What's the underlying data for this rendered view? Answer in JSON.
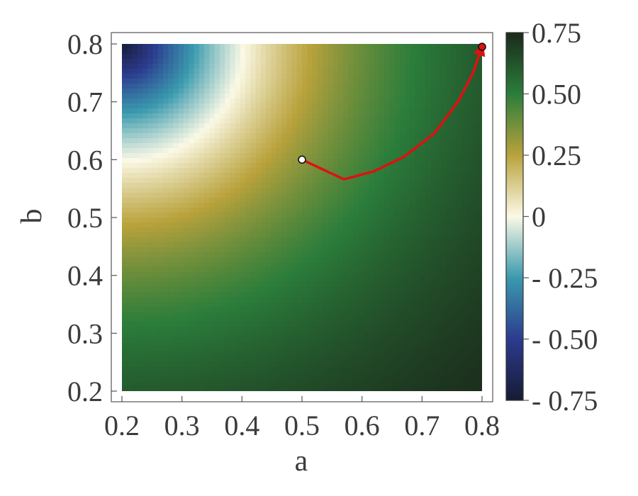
{
  "chart_data": {
    "type": "heatmap",
    "xlabel": "a",
    "ylabel": "b",
    "xlim": [
      0.2,
      0.8
    ],
    "ylim": [
      0.2,
      0.8
    ],
    "x_ticks": [
      "0.2",
      "0.3",
      "0.4",
      "0.5",
      "0.6",
      "0.7",
      "0.8"
    ],
    "y_ticks": [
      "0.2",
      "0.3",
      "0.4",
      "0.5",
      "0.6",
      "0.7",
      "0.8"
    ],
    "colorbar": {
      "range": [
        -0.75,
        0.75
      ],
      "ticks": [
        {
          "value": 0.75,
          "label": "0.75"
        },
        {
          "value": 0.5,
          "label": "0.50"
        },
        {
          "value": 0.25,
          "label": "0.25"
        },
        {
          "value": 0,
          "label": "0"
        },
        {
          "value": -0.25,
          "label": "- 0.25"
        },
        {
          "value": -0.5,
          "label": "- 0.50"
        },
        {
          "value": -0.75,
          "label": "- 0.75"
        }
      ],
      "colors": [
        {
          "value": -0.75,
          "color": "#161b33"
        },
        {
          "value": -0.5,
          "color": "#2c3b8e"
        },
        {
          "value": -0.25,
          "color": "#3a9aae"
        },
        {
          "value": 0,
          "color": "#fbf9e6"
        },
        {
          "value": 0.25,
          "color": "#b9a23c"
        },
        {
          "value": 0.5,
          "color": "#2b7d3b"
        },
        {
          "value": 0.75,
          "color": "#1b2a1b"
        }
      ]
    },
    "start_point": {
      "a": 0.5,
      "b": 0.6
    },
    "end_point": {
      "a": 0.8,
      "b": 0.795
    },
    "path": [
      {
        "a": 0.5,
        "b": 0.6
      },
      {
        "a": 0.535,
        "b": 0.583
      },
      {
        "a": 0.57,
        "b": 0.566
      },
      {
        "a": 0.62,
        "b": 0.58
      },
      {
        "a": 0.67,
        "b": 0.605
      },
      {
        "a": 0.72,
        "b": 0.645
      },
      {
        "a": 0.76,
        "b": 0.7
      },
      {
        "a": 0.785,
        "b": 0.75
      },
      {
        "a": 0.8,
        "b": 0.795
      }
    ],
    "path_color": "#e01010",
    "grid": false
  }
}
